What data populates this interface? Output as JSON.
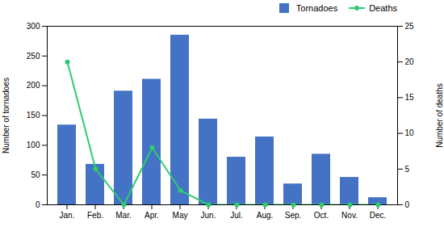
{
  "chart_data": {
    "type": "bar",
    "categories": [
      "Jan.",
      "Feb.",
      "Mar.",
      "Apr.",
      "May",
      "Jun.",
      "Jul.",
      "Aug.",
      "Sep.",
      "Oct.",
      "Nov.",
      "Dec."
    ],
    "series": [
      {
        "name": "Tornadoes",
        "type": "bar",
        "color": "#4472c4",
        "values": [
          134,
          68,
          191,
          211,
          285,
          144,
          80,
          114,
          35,
          85,
          46,
          12
        ]
      },
      {
        "name": "Deaths",
        "type": "line",
        "axis": "y2",
        "color": "#2ecc71",
        "marker": "circle",
        "values": [
          20,
          5,
          0,
          8,
          2,
          0,
          0,
          0,
          0,
          0,
          0,
          0
        ]
      }
    ],
    "ylabel": "Number of tornadoes",
    "y2label": "Number of deaths",
    "ylim": [
      0,
      300
    ],
    "yticks": [
      0,
      50,
      100,
      150,
      200,
      250,
      300
    ],
    "y2lim": [
      0,
      25
    ],
    "y2ticks": [
      0,
      5,
      10,
      15,
      20,
      25
    ],
    "grid": false,
    "legend": "upper right"
  }
}
